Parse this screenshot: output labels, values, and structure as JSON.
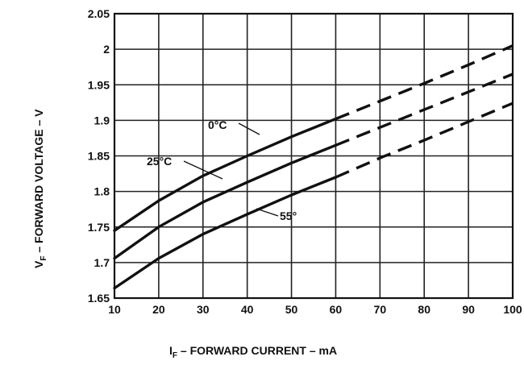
{
  "chart_data": {
    "type": "line",
    "title": "",
    "xlabel": "I_F – FORWARD CURRENT – mA",
    "xlabel_main": "I",
    "xlabel_sub": "F",
    "xlabel_rest": " – FORWARD CURRENT – mA",
    "ylabel": "V_F – FORWARD VOLTAGE – V",
    "ylabel_main": "V",
    "ylabel_sub": "F",
    "ylabel_rest": " – FORWARD VOLTAGE – V",
    "xlim": [
      10,
      100
    ],
    "ylim": [
      1.65,
      2.05
    ],
    "grid": true,
    "x_ticks": [
      "10",
      "20",
      "30",
      "40",
      "50",
      "60",
      "70",
      "80",
      "90",
      "100"
    ],
    "y_ticks": [
      "1.65",
      "1.7",
      "1.75",
      "1.8",
      "1.85",
      "1.9",
      "1.95",
      "2",
      "2.05"
    ],
    "solid_until_x": 60,
    "series": [
      {
        "name": "0°C",
        "x": [
          10,
          20,
          30,
          40,
          50,
          60,
          70,
          80,
          90,
          100
        ],
        "y": [
          1.745,
          1.787,
          1.822,
          1.85,
          1.877,
          1.902,
          1.927,
          1.952,
          1.978,
          2.005
        ]
      },
      {
        "name": "25°C",
        "x": [
          10,
          20,
          30,
          40,
          50,
          60,
          70,
          80,
          90,
          100
        ],
        "y": [
          1.706,
          1.75,
          1.785,
          1.813,
          1.84,
          1.865,
          1.89,
          1.915,
          1.94,
          1.965
        ]
      },
      {
        "name": "55°",
        "x": [
          10,
          20,
          30,
          40,
          50,
          60,
          70,
          80,
          90,
          100
        ],
        "y": [
          1.664,
          1.706,
          1.74,
          1.768,
          1.795,
          1.82,
          1.847,
          1.872,
          1.898,
          1.924
        ]
      }
    ]
  }
}
